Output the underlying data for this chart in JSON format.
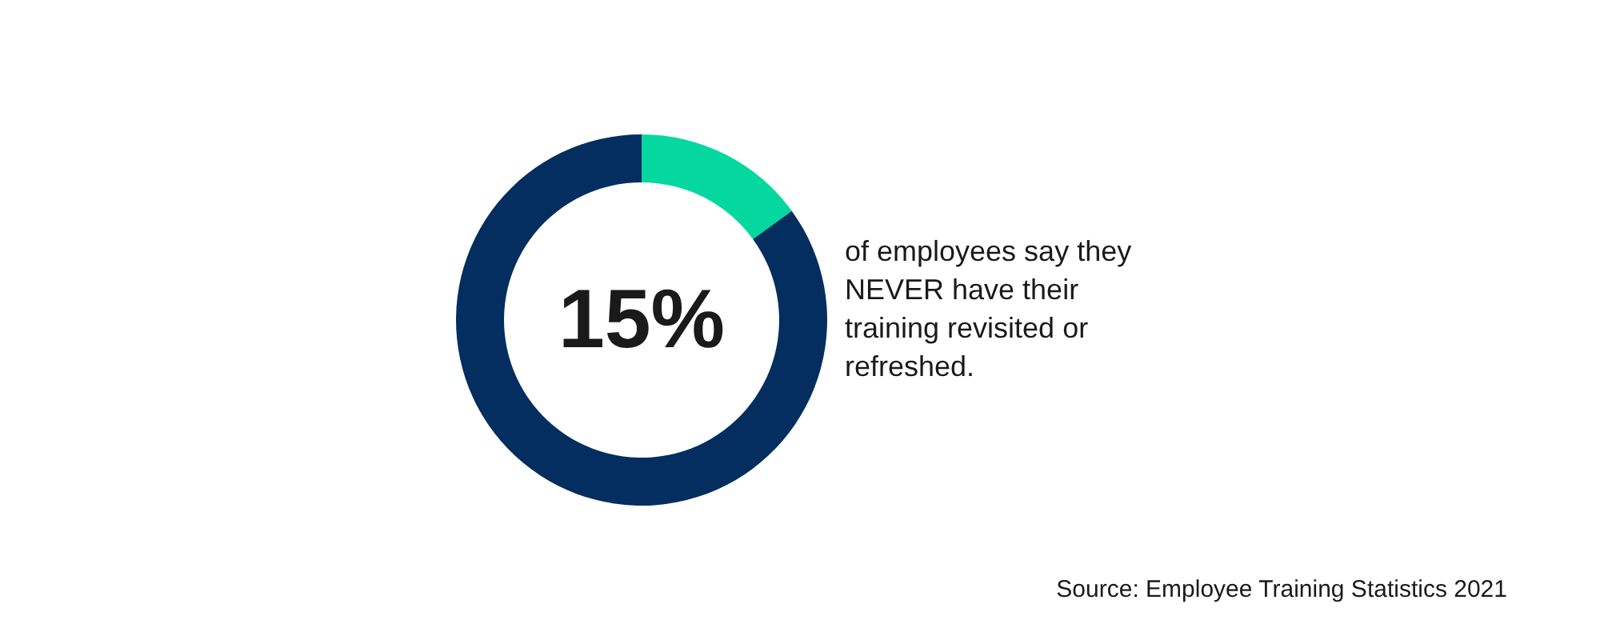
{
  "chart_data": {
    "type": "donut",
    "categories": [
      null,
      null
    ],
    "values": [
      15,
      85
    ],
    "colors": [
      "#04d89e",
      "#032e5f"
    ],
    "value_labels": [
      "15%",
      null
    ],
    "legend": false,
    "annotations": [
      "of employees say they NEVER have their training revisited or refreshed.",
      "Source: Employee Training Statistics 2021"
    ]
  }
}
